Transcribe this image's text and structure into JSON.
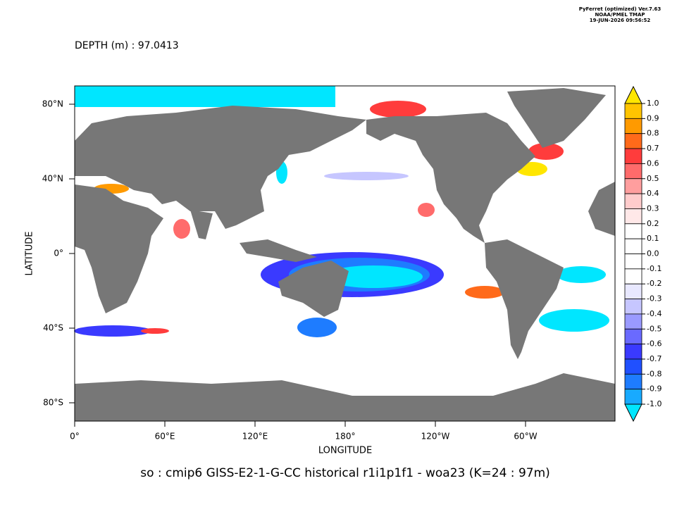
{
  "header": {
    "software": "PyFerret (optimized) Ver.7.63",
    "org": "NOAA/PMEL TMAP",
    "timestamp": "19-JUN-2026 09:56:52"
  },
  "subtitle": "DEPTH (m) : 97.0413",
  "title": "so : cmip6 GISS-E2-1-G-CC historical r1i1p1f1 - woa23  (K=24 : 97m)",
  "x_axis": {
    "label": "LONGITUDE",
    "ticks": [
      "0°",
      "60°E",
      "120°E",
      "180°",
      "120°W",
      "60°W"
    ]
  },
  "y_axis": {
    "label": "LATITUDE",
    "ticks": [
      "80°N",
      "40°N",
      "0°",
      "40°S",
      "80°S"
    ]
  },
  "colorbar": {
    "labels": [
      "1.0",
      "0.9",
      "0.8",
      "0.7",
      "0.6",
      "0.5",
      "0.4",
      "0.3",
      "0.2",
      "0.1",
      "0.0",
      "-0.1",
      "-0.2",
      "-0.3",
      "-0.4",
      "-0.5",
      "-0.6",
      "-0.7",
      "-0.8",
      "-0.9",
      "-1.0"
    ],
    "colors": [
      "#ffe600",
      "#ffc400",
      "#ff9a00",
      "#ff6a1a",
      "#ff3c3c",
      "#ff6b6b",
      "#ff9e9e",
      "#ffcccc",
      "#ffe8e8",
      "#ffffff",
      "#ffffff",
      "#ffffff",
      "#ffffff",
      "#e8e8ff",
      "#c6c6ff",
      "#9a9aff",
      "#6a6aff",
      "#3a3aff",
      "#2050ff",
      "#1e7cff",
      "#18aaff",
      "#00e6ff"
    ]
  }
}
